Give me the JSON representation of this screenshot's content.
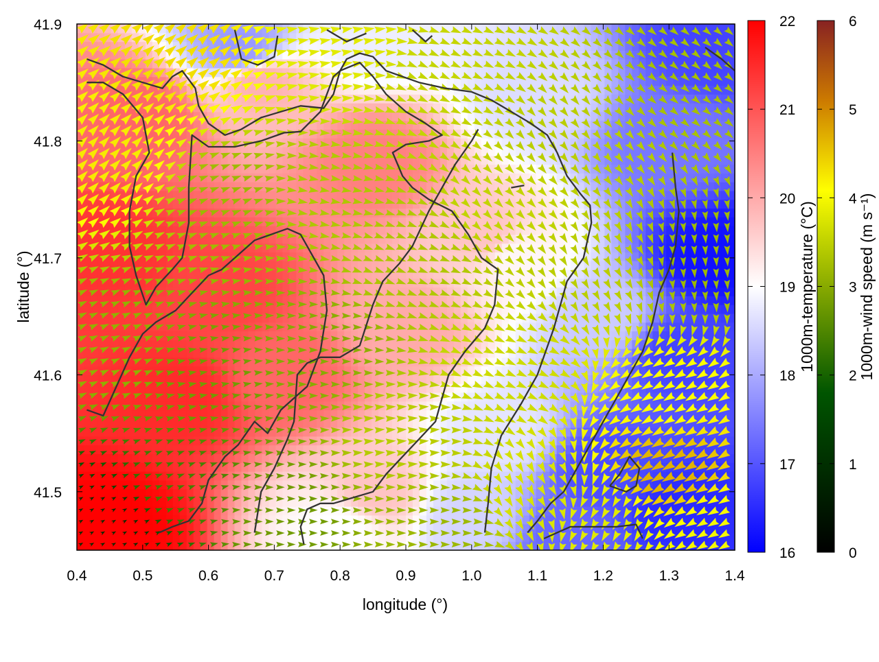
{
  "chart_data": {
    "type": "heatmap",
    "title": "",
    "xlabel": "longitude (°)",
    "ylabel": "latitude (°)",
    "xlim": [
      0.4,
      1.4
    ],
    "ylim": [
      41.45,
      41.9
    ],
    "x_ticks": [
      0.4,
      0.5,
      0.6,
      0.7,
      0.8,
      0.9,
      1.0,
      1.1,
      1.2,
      1.3,
      1.4
    ],
    "y_ticks": [
      41.5,
      41.6,
      41.7,
      41.8,
      41.9
    ],
    "x_tick_labels": [
      "0.4",
      "0.5",
      "0.6",
      "0.7",
      "0.8",
      "0.9",
      "1.0",
      "1.1",
      "1.2",
      "1.3",
      "1.4"
    ],
    "y_tick_labels": [
      "41.5",
      "41.6",
      "41.7",
      "41.8",
      "41.9"
    ],
    "grid": false,
    "temperature": {
      "label": "1000m-temperature (°C)",
      "range": [
        16,
        22
      ],
      "ticks": [
        "16",
        "17",
        "18",
        "19",
        "20",
        "21",
        "22"
      ],
      "colors": [
        "#0000ff",
        "#ffffff",
        "#ff0000"
      ],
      "samples": [
        {
          "lon": 0.45,
          "lat": 41.47,
          "t": 22.0
        },
        {
          "lon": 0.55,
          "lat": 41.58,
          "t": 21.5
        },
        {
          "lon": 0.45,
          "lat": 41.7,
          "t": 21.4
        },
        {
          "lon": 0.62,
          "lat": 41.67,
          "t": 21.2
        },
        {
          "lon": 0.5,
          "lat": 41.82,
          "t": 20.8
        },
        {
          "lon": 0.72,
          "lat": 41.6,
          "t": 20.8
        },
        {
          "lon": 0.68,
          "lat": 41.85,
          "t": 19.9
        },
        {
          "lon": 0.85,
          "lat": 41.78,
          "t": 20.5
        },
        {
          "lon": 0.9,
          "lat": 41.64,
          "t": 20.0
        },
        {
          "lon": 0.85,
          "lat": 41.5,
          "t": 19.7
        },
        {
          "lon": 0.8,
          "lat": 41.47,
          "t": 19.0
        },
        {
          "lon": 0.65,
          "lat": 41.88,
          "t": 17.8
        },
        {
          "lon": 0.85,
          "lat": 41.89,
          "t": 18.8
        },
        {
          "lon": 1.02,
          "lat": 41.72,
          "t": 19.7
        },
        {
          "lon": 1.07,
          "lat": 41.7,
          "t": 19.1
        },
        {
          "lon": 1.05,
          "lat": 41.55,
          "t": 18.7
        },
        {
          "lon": 1.0,
          "lat": 41.48,
          "t": 18.5
        },
        {
          "lon": 1.1,
          "lat": 41.84,
          "t": 18.6
        },
        {
          "lon": 1.2,
          "lat": 41.65,
          "t": 18.4
        },
        {
          "lon": 1.3,
          "lat": 41.8,
          "t": 17.4
        },
        {
          "lon": 1.37,
          "lat": 41.88,
          "t": 16.8
        },
        {
          "lon": 1.32,
          "lat": 41.62,
          "t": 16.8
        },
        {
          "lon": 1.37,
          "lat": 41.7,
          "t": 16.2
        },
        {
          "lon": 1.2,
          "lat": 41.52,
          "t": 16.9
        },
        {
          "lon": 1.32,
          "lat": 41.48,
          "t": 16.5
        },
        {
          "lon": 1.15,
          "lat": 41.46,
          "t": 17.2
        }
      ]
    },
    "wind": {
      "label": "1000m-wind speed (m s⁻¹)",
      "range": [
        0,
        6
      ],
      "ticks": [
        "0",
        "1",
        "2",
        "3",
        "4",
        "5",
        "6"
      ],
      "colors": [
        "#000000",
        "#005500",
        "#88aa00",
        "#ffff00",
        "#cc7a00",
        "#882222"
      ],
      "samples": [
        {
          "lon": 0.45,
          "lat": 41.47,
          "speed": 0.6,
          "dir_deg": 30
        },
        {
          "lon": 0.55,
          "lat": 41.5,
          "speed": 1.8,
          "dir_deg": 20
        },
        {
          "lon": 0.7,
          "lat": 41.48,
          "speed": 2.2,
          "dir_deg": 0
        },
        {
          "lon": 0.45,
          "lat": 41.62,
          "speed": 2.5,
          "dir_deg": 25
        },
        {
          "lon": 0.6,
          "lat": 41.6,
          "speed": 2.2,
          "dir_deg": 10
        },
        {
          "lon": 0.75,
          "lat": 41.62,
          "speed": 2.4,
          "dir_deg": 0
        },
        {
          "lon": 0.45,
          "lat": 41.78,
          "speed": 3.8,
          "dir_deg": 45
        },
        {
          "lon": 0.55,
          "lat": 41.87,
          "speed": 3.9,
          "dir_deg": 40
        },
        {
          "lon": 0.62,
          "lat": 41.75,
          "speed": 2.6,
          "dir_deg": 20
        },
        {
          "lon": 0.78,
          "lat": 41.75,
          "speed": 2.8,
          "dir_deg": -10
        },
        {
          "lon": 0.8,
          "lat": 41.88,
          "speed": 3.3,
          "dir_deg": 10
        },
        {
          "lon": 0.95,
          "lat": 41.85,
          "speed": 3.0,
          "dir_deg": -25
        },
        {
          "lon": 0.9,
          "lat": 41.7,
          "speed": 2.8,
          "dir_deg": -20
        },
        {
          "lon": 0.9,
          "lat": 41.55,
          "speed": 2.9,
          "dir_deg": 5
        },
        {
          "lon": 1.05,
          "lat": 41.75,
          "speed": 3.0,
          "dir_deg": -45
        },
        {
          "lon": 1.05,
          "lat": 41.6,
          "speed": 3.1,
          "dir_deg": -25
        },
        {
          "lon": 1.15,
          "lat": 41.8,
          "speed": 2.9,
          "dir_deg": -50
        },
        {
          "lon": 1.2,
          "lat": 41.7,
          "speed": 2.9,
          "dir_deg": -60
        },
        {
          "lon": 1.35,
          "lat": 41.85,
          "speed": 2.7,
          "dir_deg": -40
        },
        {
          "lon": 1.35,
          "lat": 41.7,
          "speed": 2.6,
          "dir_deg": -85
        },
        {
          "lon": 1.3,
          "lat": 41.58,
          "speed": 3.6,
          "dir_deg": -150
        },
        {
          "lon": 1.3,
          "lat": 41.52,
          "speed": 4.3,
          "dir_deg": -150
        },
        {
          "lon": 1.2,
          "lat": 41.48,
          "speed": 3.3,
          "dir_deg": -120
        },
        {
          "lon": 1.1,
          "lat": 41.5,
          "speed": 3.2,
          "dir_deg": -60
        },
        {
          "lon": 0.95,
          "lat": 41.47,
          "speed": 2.6,
          "dir_deg": 0
        },
        {
          "lon": 1.38,
          "lat": 41.47,
          "speed": 3.5,
          "dir_deg": -150
        }
      ]
    },
    "contours": [
      [
        [
          0.415,
          41.87
        ],
        [
          0.44,
          41.865
        ],
        [
          0.47,
          41.855
        ],
        [
          0.5,
          41.85
        ],
        [
          0.53,
          41.845
        ],
        [
          0.545,
          41.855
        ],
        [
          0.56,
          41.86
        ],
        [
          0.58,
          41.845
        ],
        [
          0.585,
          41.83
        ],
        [
          0.6,
          41.815
        ],
        [
          0.625,
          41.805
        ],
        [
          0.65,
          41.81
        ],
        [
          0.68,
          41.82
        ],
        [
          0.71,
          41.825
        ],
        [
          0.74,
          41.83
        ],
        [
          0.775,
          41.828
        ],
        [
          0.79,
          41.84
        ],
        [
          0.8,
          41.86
        ],
        [
          0.81,
          41.87
        ],
        [
          0.83,
          41.875
        ],
        [
          0.85,
          41.872
        ],
        [
          0.87,
          41.86
        ],
        [
          0.895,
          41.855
        ],
        [
          0.92,
          41.85
        ],
        [
          0.96,
          41.845
        ],
        [
          1.0,
          41.842
        ],
        [
          1.03,
          41.835
        ],
        [
          1.06,
          41.825
        ],
        [
          1.09,
          41.815
        ],
        [
          1.115,
          41.805
        ],
        [
          1.13,
          41.79
        ],
        [
          1.145,
          41.77
        ],
        [
          1.165,
          41.755
        ],
        [
          1.18,
          41.745
        ],
        [
          1.182,
          41.73
        ],
        [
          1.17,
          41.7
        ],
        [
          1.145,
          41.68
        ],
        [
          1.125,
          41.64
        ],
        [
          1.1,
          41.6
        ],
        [
          1.075,
          41.575
        ],
        [
          1.045,
          41.548
        ],
        [
          1.03,
          41.52
        ],
        [
          1.025,
          41.49
        ],
        [
          1.02,
          41.465
        ]
      ],
      [
        [
          0.415,
          41.85
        ],
        [
          0.44,
          41.85
        ],
        [
          0.47,
          41.84
        ],
        [
          0.5,
          41.82
        ],
        [
          0.51,
          41.79
        ],
        [
          0.49,
          41.77
        ],
        [
          0.48,
          41.74
        ],
        [
          0.48,
          41.71
        ],
        [
          0.49,
          41.685
        ],
        [
          0.505,
          41.66
        ],
        [
          0.52,
          41.675
        ],
        [
          0.545,
          41.69
        ],
        [
          0.56,
          41.7
        ],
        [
          0.57,
          41.73
        ],
        [
          0.57,
          41.76
        ],
        [
          0.575,
          41.805
        ],
        [
          0.6,
          41.795
        ],
        [
          0.64,
          41.795
        ],
        [
          0.68,
          41.8
        ],
        [
          0.715,
          41.807
        ],
        [
          0.74,
          41.808
        ],
        [
          0.77,
          41.825
        ],
        [
          0.78,
          41.84
        ],
        [
          0.79,
          41.855
        ],
        [
          0.8,
          41.86
        ],
        [
          0.83,
          41.867
        ],
        [
          0.85,
          41.855
        ],
        [
          0.87,
          41.84
        ],
        [
          0.9,
          41.825
        ],
        [
          0.93,
          41.815
        ],
        [
          0.955,
          41.805
        ],
        [
          0.935,
          41.8
        ],
        [
          0.9,
          41.797
        ],
        [
          0.88,
          41.79
        ],
        [
          0.895,
          41.77
        ],
        [
          0.91,
          41.76
        ],
        [
          0.935,
          41.75
        ],
        [
          0.97,
          41.74
        ],
        [
          0.995,
          41.72
        ],
        [
          1.015,
          41.7
        ],
        [
          1.04,
          41.69
        ],
        [
          1.035,
          41.66
        ],
        [
          1.02,
          41.64
        ],
        [
          0.99,
          41.62
        ],
        [
          0.965,
          41.6
        ],
        [
          0.945,
          41.56
        ],
        [
          0.92,
          41.545
        ],
        [
          0.895,
          41.53
        ],
        [
          0.87,
          41.515
        ],
        [
          0.85,
          41.5
        ],
        [
          0.82,
          41.495
        ],
        [
          0.79,
          41.49
        ],
        [
          0.77,
          41.49
        ],
        [
          0.75,
          41.485
        ],
        [
          0.74,
          41.47
        ],
        [
          0.745,
          41.455
        ]
      ],
      [
        [
          0.415,
          41.57
        ],
        [
          0.44,
          41.565
        ],
        [
          0.46,
          41.59
        ],
        [
          0.48,
          41.615
        ],
        [
          0.5,
          41.635
        ],
        [
          0.52,
          41.645
        ],
        [
          0.55,
          41.655
        ],
        [
          0.575,
          41.67
        ],
        [
          0.6,
          41.685
        ],
        [
          0.62,
          41.69
        ],
        [
          0.65,
          41.705
        ],
        [
          0.67,
          41.715
        ],
        [
          0.695,
          41.72
        ],
        [
          0.72,
          41.725
        ],
        [
          0.74,
          41.72
        ],
        [
          0.76,
          41.7
        ],
        [
          0.775,
          41.685
        ],
        [
          0.78,
          41.655
        ],
        [
          0.77,
          41.62
        ],
        [
          0.75,
          41.59
        ],
        [
          0.73,
          41.58
        ],
        [
          0.71,
          41.57
        ],
        [
          0.69,
          41.55
        ],
        [
          0.67,
          41.56
        ],
        [
          0.645,
          41.54
        ],
        [
          0.625,
          41.53
        ],
        [
          0.6,
          41.51
        ],
        [
          0.59,
          41.49
        ],
        [
          0.57,
          41.475
        ],
        [
          0.545,
          41.47
        ],
        [
          0.525,
          41.465
        ]
      ],
      [
        [
          0.67,
          41.465
        ],
        [
          0.68,
          41.5
        ],
        [
          0.7,
          41.52
        ],
        [
          0.72,
          41.545
        ],
        [
          0.73,
          41.56
        ],
        [
          0.735,
          41.6
        ],
        [
          0.75,
          41.61
        ],
        [
          0.77,
          41.615
        ],
        [
          0.8,
          41.615
        ],
        [
          0.83,
          41.625
        ],
        [
          0.85,
          41.66
        ],
        [
          0.865,
          41.68
        ],
        [
          0.89,
          41.695
        ],
        [
          0.91,
          41.71
        ],
        [
          0.935,
          41.74
        ],
        [
          0.955,
          41.76
        ],
        [
          0.975,
          41.78
        ],
        [
          1.0,
          41.8
        ],
        [
          1.01,
          41.81
        ]
      ],
      [
        [
          1.11,
          41.46
        ],
        [
          1.13,
          41.465
        ],
        [
          1.15,
          41.47
        ],
        [
          1.18,
          41.47
        ],
        [
          1.22,
          41.47
        ],
        [
          1.25,
          41.472
        ],
        [
          1.26,
          41.46
        ]
      ],
      [
        [
          1.21,
          41.505
        ],
        [
          1.235,
          41.5
        ],
        [
          1.25,
          41.505
        ],
        [
          1.255,
          41.52
        ],
        [
          1.24,
          41.53
        ],
        [
          1.225,
          41.515
        ],
        [
          1.21,
          41.505
        ]
      ],
      [
        [
          1.305,
          41.79
        ],
        [
          1.31,
          41.76
        ],
        [
          1.315,
          41.74
        ],
        [
          1.31,
          41.71
        ],
        [
          1.3,
          41.69
        ],
        [
          1.285,
          41.67
        ],
        [
          1.275,
          41.645
        ],
        [
          1.26,
          41.62
        ],
        [
          1.24,
          41.6
        ],
        [
          1.22,
          41.58
        ],
        [
          1.2,
          41.56
        ],
        [
          1.18,
          41.54
        ],
        [
          1.16,
          41.52
        ],
        [
          1.14,
          41.5
        ],
        [
          1.12,
          41.49
        ],
        [
          1.1,
          41.475
        ],
        [
          1.085,
          41.465
        ]
      ],
      [
        [
          1.355,
          41.88
        ],
        [
          1.38,
          41.87
        ],
        [
          1.4,
          41.86
        ]
      ],
      [
        [
          0.64,
          41.895
        ],
        [
          0.65,
          41.87
        ],
        [
          0.675,
          41.865
        ],
        [
          0.7,
          41.872
        ],
        [
          0.705,
          41.89
        ]
      ],
      [
        [
          0.78,
          41.895
        ],
        [
          0.81,
          41.885
        ],
        [
          0.84,
          41.892
        ]
      ],
      [
        [
          0.91,
          41.895
        ],
        [
          0.93,
          41.885
        ],
        [
          0.94,
          41.89
        ]
      ],
      [
        [
          1.06,
          41.76
        ],
        [
          1.08,
          41.762
        ]
      ]
    ]
  }
}
